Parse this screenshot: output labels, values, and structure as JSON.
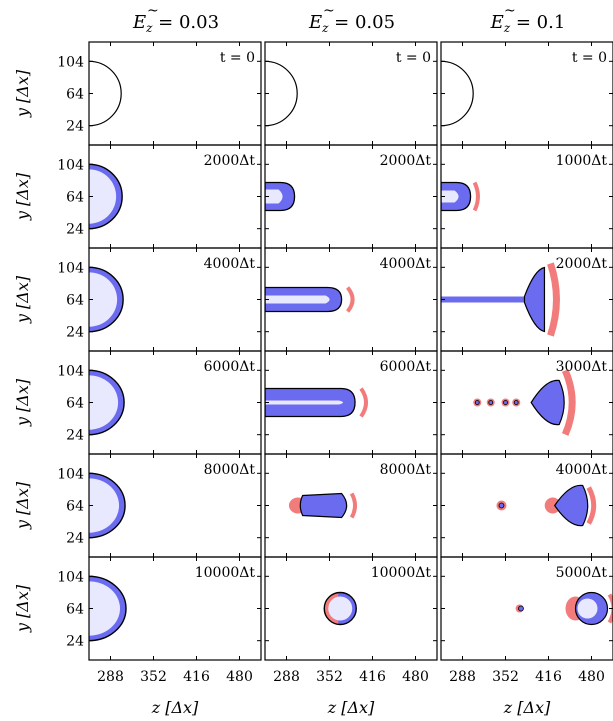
{
  "figure": {
    "columns": [
      {
        "label": "Ẽ_z = 0.03",
        "ez": "0.03"
      },
      {
        "label": "Ẽ_z = 0.05",
        "ez": "0.05"
      },
      {
        "label": "Ẽ_z = 0.1",
        "ez": "0.1"
      }
    ],
    "ylabel": "y [Δx]",
    "xlabel": "z [Δx]",
    "yticks": [
      "104",
      "64",
      "24"
    ],
    "xticks": [
      "288",
      "352",
      "416",
      "480"
    ],
    "time_labels": [
      [
        "t = 0",
        "t = 0",
        "t = 0"
      ],
      [
        "2000Δt",
        "2000Δt",
        "1000Δt"
      ],
      [
        "4000Δt",
        "4000Δt",
        "2000Δt"
      ],
      [
        "6000Δt",
        "6000Δt",
        "3000Δt"
      ],
      [
        "8000Δt",
        "8000Δt",
        "4000Δt"
      ],
      [
        "10000Δt",
        "10000Δt",
        "5000Δt"
      ]
    ],
    "colors": {
      "positive_charge": "#f27c7c",
      "negative_charge": "#6b6bf0",
      "interface": "#000000",
      "frame": "#000000"
    }
  }
}
